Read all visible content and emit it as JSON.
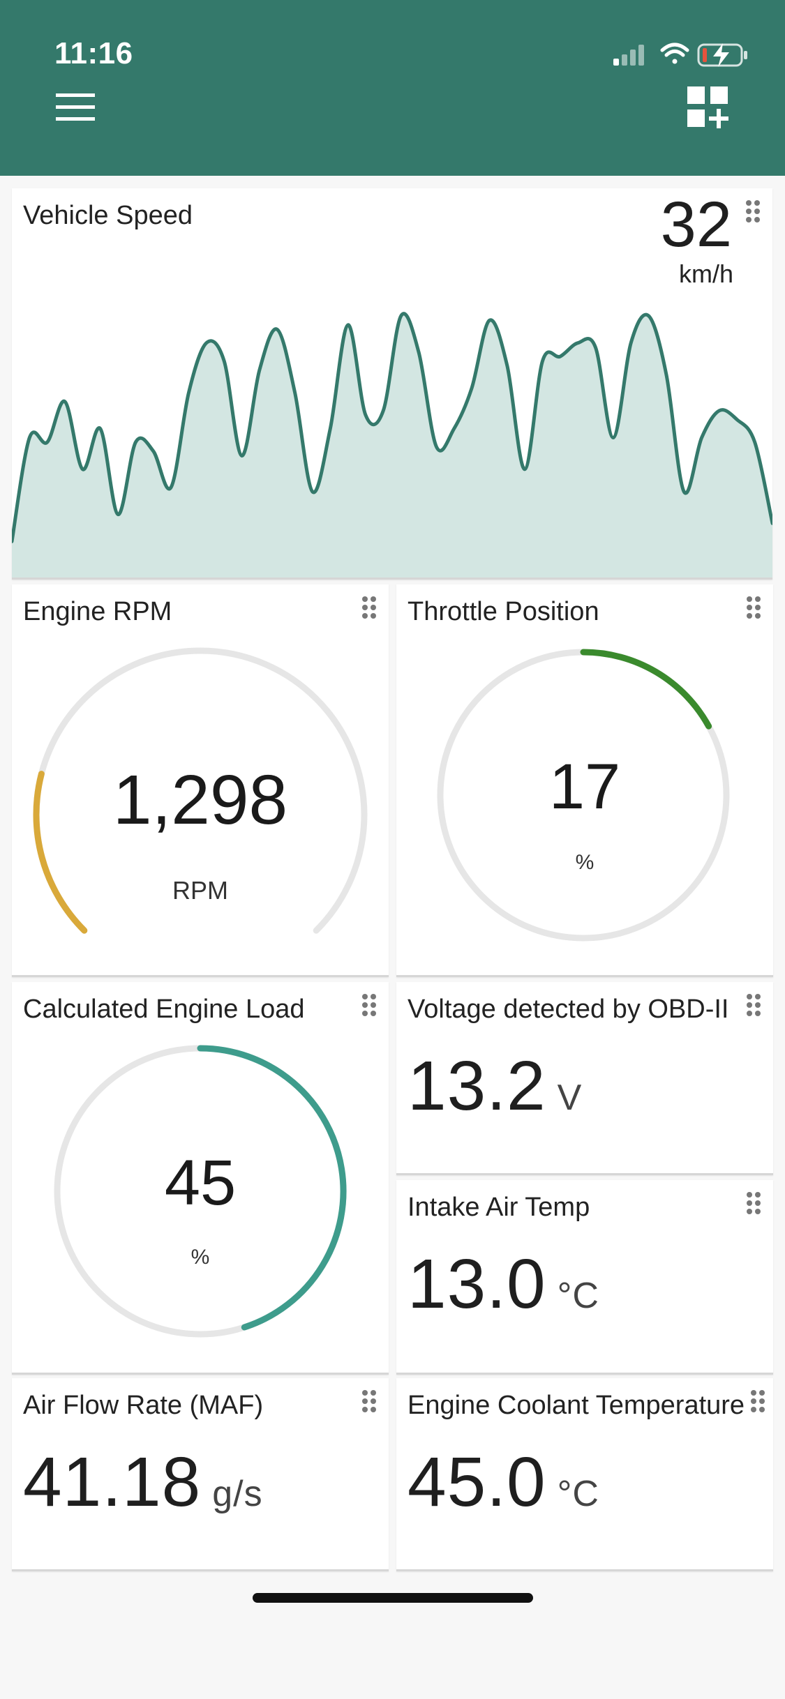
{
  "status_bar": {
    "time": "11:16"
  },
  "colors": {
    "header": "#34796b",
    "speed_line": "#34796b",
    "speed_fill": "#d3e6e2",
    "rpm_arc": "#d9a93a",
    "throttle_arc": "#3a8a2d",
    "load_arc": "#3e9c8c",
    "track": "#e6e6e6"
  },
  "icons": {
    "menu": "hamburger-menu-icon",
    "add_widget": "dashboard-add-icon",
    "drag": "drag-handle-icon"
  },
  "vehicle_speed": {
    "title": "Vehicle Speed",
    "value": "32",
    "unit": "km/h",
    "chart_data": {
      "type": "area",
      "series": [
        {
          "values": [
            8,
            31,
            30,
            39,
            24,
            33,
            14,
            30,
            28,
            20,
            41,
            52,
            48,
            27,
            46,
            55,
            41,
            19,
            33,
            56,
            36,
            37,
            58,
            50,
            29,
            33,
            42,
            57,
            47,
            24,
            48,
            49,
            52,
            51,
            31,
            52,
            58,
            45,
            19,
            31,
            37,
            35,
            30,
            12
          ]
        }
      ]
    }
  },
  "engine_rpm": {
    "title": "Engine RPM",
    "value": "1,298",
    "unit": "RPM",
    "level": 0.22
  },
  "throttle": {
    "title": "Throttle Position",
    "value": "17",
    "unit": "%",
    "level": 0.17
  },
  "engine_load": {
    "title": "Calculated Engine Load",
    "value": "45",
    "unit": "%",
    "level": 0.45
  },
  "voltage": {
    "title": "Voltage detected by OBD-II",
    "value": "13.2",
    "unit": "V"
  },
  "intake_temp": {
    "title": "Intake Air Temp",
    "value": "13.0",
    "unit": "°C"
  },
  "maf": {
    "title": "Air Flow Rate (MAF)",
    "value": "41.18",
    "unit": "g/s"
  },
  "coolant": {
    "title": "Engine Coolant Temperature",
    "value": "45.0",
    "unit": "°C"
  }
}
